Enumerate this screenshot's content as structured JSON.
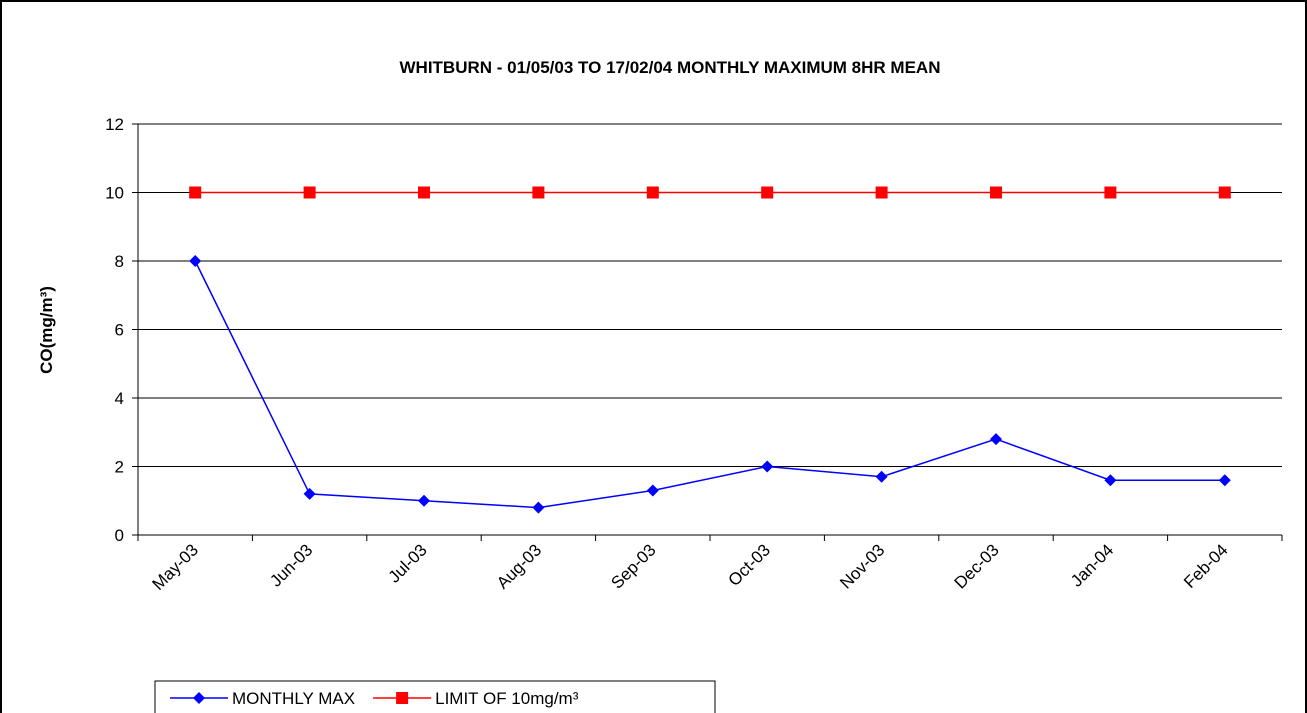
{
  "chart_data": {
    "type": "line",
    "title": "WHITBURN - 01/05/03 TO 17/02/04 MONTHLY MAXIMUM 8HR MEAN",
    "y_label": "CO(mg/m³)",
    "categories": [
      "May-03",
      "Jun-03",
      "Jul-03",
      "Aug-03",
      "Sep-03",
      "Oct-03",
      "Nov-03",
      "Dec-03",
      "Jan-04",
      "Feb-04"
    ],
    "series": [
      {
        "name": "MONTHLY MAX",
        "color": "#0000ff",
        "marker": "diamond",
        "values": [
          8,
          1.2,
          1.0,
          0.8,
          1.3,
          2.0,
          1.7,
          2.8,
          1.6,
          1.6
        ]
      },
      {
        "name": "LIMIT OF 10mg/m³",
        "color": "#ff0000",
        "marker": "square",
        "values": [
          10,
          10,
          10,
          10,
          10,
          10,
          10,
          10,
          10,
          10
        ]
      }
    ],
    "ylim": [
      0,
      12
    ],
    "yticks": [
      0,
      2,
      4,
      6,
      8,
      10,
      12
    ],
    "grid": true
  }
}
